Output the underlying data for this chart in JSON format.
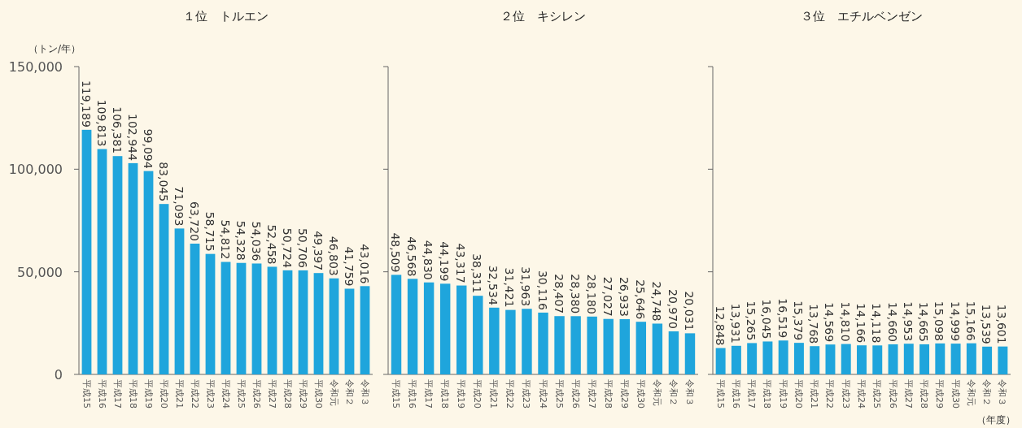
{
  "chart_data": [
    {
      "type": "bar",
      "title": "１位　トルエン",
      "ylabel": "（トン/年）",
      "categories": [
        "平成15",
        "平成16",
        "平成17",
        "平成18",
        "平成19",
        "平成20",
        "平成21",
        "平成22",
        "平成23",
        "平成24",
        "平成25",
        "平成26",
        "平成27",
        "平成28",
        "平成29",
        "平成30",
        "令和元",
        "令和２",
        "令和３"
      ],
      "series": [
        {
          "color": "#1fa5dc",
          "values": [
            119189,
            109813,
            106381,
            102944,
            99094,
            83045,
            71093,
            63720,
            58715,
            54812,
            54328,
            54036,
            52458,
            50724,
            50706,
            49397,
            46803,
            41759,
            43016
          ],
          "value_labels": [
            "119,189",
            "109,813",
            "106,381",
            "102,944",
            "99,094",
            "83,045",
            "71,093",
            "63,720",
            "58,715",
            "54,812",
            "54,328",
            "54,036",
            "52,458",
            "50,724",
            "50,706",
            "49,397",
            "46,803",
            "41,759",
            "43,016"
          ]
        }
      ],
      "ylim": [
        0,
        150000
      ],
      "yticks": [
        {
          "value": 0,
          "label": "0"
        },
        {
          "value": 50000,
          "label": "50,000"
        },
        {
          "value": 100000,
          "label": "100,000"
        },
        {
          "value": 150000,
          "label": "150,000"
        }
      ],
      "grid": false
    },
    {
      "type": "bar",
      "title": "２位　キシレン",
      "categories": [
        "平成15",
        "平成16",
        "平成17",
        "平成18",
        "平成19",
        "平成20",
        "平成21",
        "平成22",
        "平成23",
        "平成24",
        "平成25",
        "平成26",
        "平成27",
        "平成28",
        "平成29",
        "平成30",
        "令和元",
        "令和２",
        "令和３"
      ],
      "series": [
        {
          "color": "#1fa5dc",
          "values": [
            48509,
            46568,
            44830,
            44199,
            43317,
            38311,
            32534,
            31421,
            31963,
            30116,
            28407,
            28380,
            28180,
            27027,
            26933,
            25646,
            24748,
            20970,
            20031
          ],
          "value_labels": [
            "48,509",
            "46,568",
            "44,830",
            "44,199",
            "43,317",
            "38,311",
            "32,534",
            "31,421",
            "31,963",
            "30,116",
            "28,407",
            "28,380",
            "28,180",
            "27,027",
            "26,933",
            "25,646",
            "24,748",
            "20,970",
            "20,031"
          ]
        }
      ],
      "ylim": [
        0,
        150000
      ],
      "yticks": [
        {
          "value": 0,
          "label": null
        },
        {
          "value": 50000,
          "label": null
        },
        {
          "value": 100000,
          "label": null
        },
        {
          "value": 150000,
          "label": null
        }
      ],
      "tick_labels": "x",
      "grid": false
    },
    {
      "type": "bar",
      "title": "３位　エチルベンゼン",
      "annotations": [
        "（年度）"
      ],
      "categories": [
        "平成15",
        "平成16",
        "平成17",
        "平成18",
        "平成19",
        "平成20",
        "平成21",
        "平成22",
        "平成23",
        "平成24",
        "平成25",
        "平成26",
        "平成27",
        "平成28",
        "平成29",
        "平成30",
        "令和元",
        "令和２",
        "令和３"
      ],
      "series": [
        {
          "color": "#1fa5dc",
          "values": [
            12848,
            13931,
            15265,
            16045,
            16519,
            15379,
            13768,
            14569,
            14810,
            14166,
            14118,
            14660,
            14953,
            14665,
            15098,
            14999,
            15166,
            13539,
            13601
          ],
          "value_labels": [
            "12,848",
            "13,931",
            "15,265",
            "16,045",
            "16,519",
            "15,379",
            "13,768",
            "14,569",
            "14,810",
            "14,166",
            "14,118",
            "14,660",
            "14,953",
            "14,665",
            "15,098",
            "14,999",
            "15,166",
            "13,539",
            "13,601"
          ]
        }
      ],
      "ylim": [
        0,
        150000
      ],
      "yticks": [
        {
          "value": 0,
          "label": null
        },
        {
          "value": 50000,
          "label": null
        },
        {
          "value": 100000,
          "label": null
        },
        {
          "value": 150000,
          "label": null
        }
      ],
      "tick_labels": "x",
      "grid": false
    }
  ]
}
